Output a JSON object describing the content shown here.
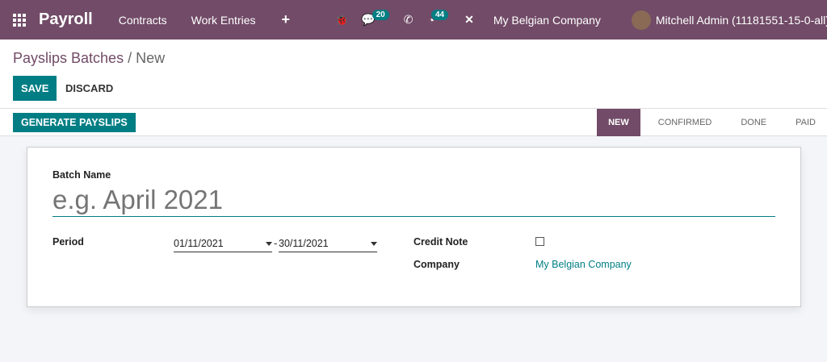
{
  "nav": {
    "app": "Payroll",
    "menus": [
      "Contracts",
      "Work Entries"
    ],
    "plus": "+",
    "chat_count": "20",
    "activity_count": "44",
    "company": "My Belgian Company",
    "user": "Mitchell Admin (11181551-15-0-all)"
  },
  "breadcrumb": {
    "parent": "Payslips Batches",
    "current": " / New"
  },
  "buttons": {
    "save": "SAVE",
    "discard": "DISCARD",
    "generate": "GENERATE PAYSLIPS"
  },
  "statusbar": [
    "NEW",
    "CONFIRMED",
    "DONE",
    "PAID"
  ],
  "form": {
    "batch_name_label": "Batch Name",
    "batch_name_placeholder": "e.g. April 2021",
    "batch_name_value": "",
    "period_label": "Period",
    "date_from": "01/11/2021",
    "date_sep": "-",
    "date_to": "30/11/2021",
    "credit_note_label": "Credit Note",
    "credit_note": false,
    "company_label": "Company",
    "company": "My Belgian Company"
  },
  "colors": {
    "brand": "#714b67",
    "accent": "#017e84"
  }
}
